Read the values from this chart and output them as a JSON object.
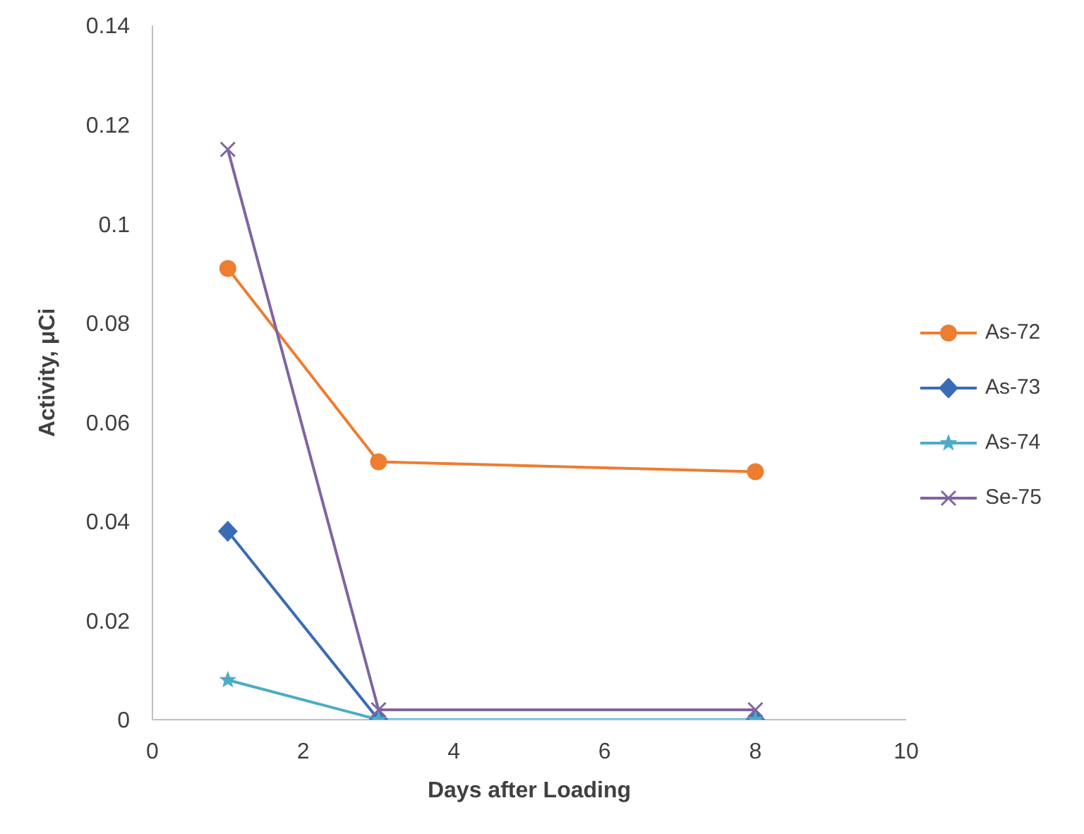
{
  "chart_data": {
    "type": "line",
    "xlabel": "Days after Loading",
    "ylabel": "Activity, μCi",
    "x": [
      1,
      3,
      8
    ],
    "series": [
      {
        "name": "As-72",
        "color": "#ed7d31",
        "marker": "circle",
        "values": [
          0.091,
          0.052,
          0.05
        ]
      },
      {
        "name": "As-73",
        "color": "#3a6cb5",
        "marker": "diamond",
        "values": [
          0.038,
          0,
          0
        ]
      },
      {
        "name": "As-74",
        "color": "#4bacc6",
        "marker": "star",
        "values": [
          0.008,
          0,
          0
        ]
      },
      {
        "name": "Se-75",
        "color": "#8064a2",
        "marker": "cross",
        "values": [
          0.115,
          0.002,
          0.002
        ]
      }
    ],
    "xlim": [
      0,
      10
    ],
    "xticks": [
      0,
      2,
      4,
      6,
      8,
      10
    ],
    "ylim": [
      0,
      0.14
    ],
    "yticks": [
      0,
      0.02,
      0.04,
      0.06,
      0.08,
      0.1,
      0.12,
      0.14
    ],
    "grid": false,
    "legend": "right"
  }
}
